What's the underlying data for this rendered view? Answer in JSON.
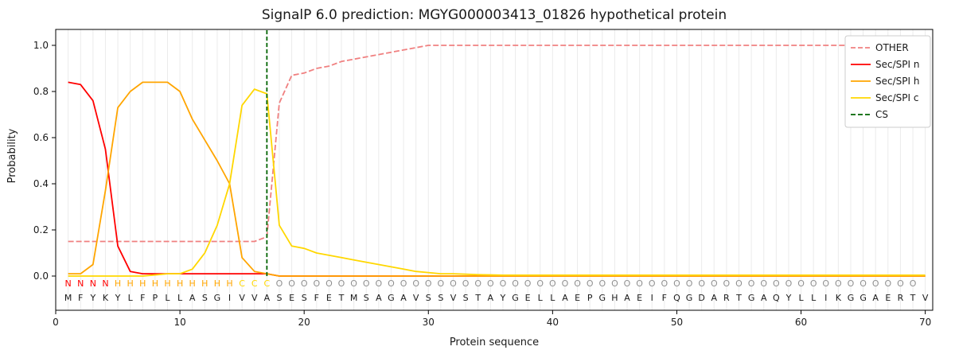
{
  "chart_data": {
    "type": "line",
    "title": "SignalP 6.0 prediction: MGYG000003413_01826 hypothetical protein",
    "xlabel": "Protein sequence",
    "ylabel": "Probability",
    "xlim": [
      0,
      70.6
    ],
    "ylim": [
      0,
      1.05
    ],
    "x_ticks": [
      0,
      10,
      20,
      30,
      40,
      50,
      60,
      70
    ],
    "y_ticks": [
      0.0,
      0.2,
      0.4,
      0.6,
      0.8,
      1.0
    ],
    "grid": "vertical gridline at every residue position",
    "legend_position": "upper right",
    "x_start": 1,
    "x_step": 1,
    "series": [
      {
        "name": "OTHER",
        "color": "#f08080",
        "dashed": true,
        "values": [
          0.15,
          0.15,
          0.15,
          0.15,
          0.15,
          0.15,
          0.15,
          0.15,
          0.15,
          0.15,
          0.15,
          0.15,
          0.15,
          0.15,
          0.15,
          0.15,
          0.17,
          0.75,
          0.87,
          0.88,
          0.9,
          0.91,
          0.93,
          0.94,
          0.95,
          0.96,
          0.97,
          0.98,
          0.99,
          1.0,
          1.0,
          1.0,
          1.0,
          1.0,
          1.0,
          1.0,
          1.0,
          1.0,
          1.0,
          1.0,
          1.0,
          1.0,
          1.0,
          1.0,
          1.0,
          1.0,
          1.0,
          1.0,
          1.0,
          1.0,
          1.0,
          1.0,
          1.0,
          1.0,
          1.0,
          1.0,
          1.0,
          1.0,
          1.0,
          1.0,
          1.0,
          1.0,
          1.0,
          1.0,
          1.0,
          1.0,
          1.0,
          1.0,
          1.0,
          1.0
        ]
      },
      {
        "name": "Sec/SPI n",
        "color": "#ff0000",
        "dashed": false,
        "values": [
          0.84,
          0.83,
          0.76,
          0.55,
          0.13,
          0.02,
          0.01,
          0.01,
          0.01,
          0.01,
          0.01,
          0.01,
          0.01,
          0.01,
          0.01,
          0.01,
          0.01,
          0.0,
          0.0,
          0.0,
          0.0,
          0.0,
          0.0,
          0.0,
          0.0,
          0.0,
          0.0,
          0.0,
          0.0,
          0.0,
          0.0,
          0.0,
          0.0,
          0.0,
          0.0,
          0.0,
          0.0,
          0.0,
          0.0,
          0.0,
          0.0,
          0.0,
          0.0,
          0.0,
          0.0,
          0.0,
          0.0,
          0.0,
          0.0,
          0.0,
          0.0,
          0.0,
          0.0,
          0.0,
          0.0,
          0.0,
          0.0,
          0.0,
          0.0,
          0.0,
          0.0,
          0.0,
          0.0,
          0.0,
          0.0,
          0.0,
          0.0,
          0.0,
          0.0,
          0.0
        ]
      },
      {
        "name": "Sec/SPI h",
        "color": "#ffa500",
        "dashed": false,
        "values": [
          0.01,
          0.01,
          0.05,
          0.37,
          0.73,
          0.8,
          0.84,
          0.84,
          0.84,
          0.8,
          0.68,
          0.59,
          0.5,
          0.4,
          0.08,
          0.02,
          0.01,
          0.0,
          0.0,
          0.0,
          0.0,
          0.0,
          0.0,
          0.0,
          0.0,
          0.0,
          0.0,
          0.0,
          0.0,
          0.0,
          0.0,
          0.0,
          0.0,
          0.0,
          0.0,
          0.0,
          0.0,
          0.0,
          0.0,
          0.0,
          0.0,
          0.0,
          0.0,
          0.0,
          0.0,
          0.0,
          0.0,
          0.0,
          0.0,
          0.0,
          0.0,
          0.0,
          0.0,
          0.0,
          0.0,
          0.0,
          0.0,
          0.0,
          0.0,
          0.0,
          0.0,
          0.0,
          0.0,
          0.0,
          0.0,
          0.0,
          0.0,
          0.0,
          0.0,
          0.0
        ]
      },
      {
        "name": "Sec/SPI c",
        "color": "#ffd700",
        "dashed": false,
        "values": [
          0.0,
          0.0,
          0.0,
          0.0,
          0.0,
          0.0,
          0.0,
          0.005,
          0.01,
          0.01,
          0.03,
          0.1,
          0.22,
          0.4,
          0.74,
          0.81,
          0.79,
          0.22,
          0.13,
          0.12,
          0.1,
          0.09,
          0.08,
          0.07,
          0.06,
          0.05,
          0.04,
          0.03,
          0.02,
          0.015,
          0.01,
          0.01,
          0.008,
          0.006,
          0.005,
          0.004,
          0.004,
          0.004,
          0.004,
          0.004,
          0.004,
          0.004,
          0.004,
          0.004,
          0.004,
          0.004,
          0.004,
          0.004,
          0.004,
          0.004,
          0.004,
          0.004,
          0.004,
          0.004,
          0.004,
          0.004,
          0.004,
          0.004,
          0.004,
          0.004,
          0.004,
          0.004,
          0.004,
          0.004,
          0.004,
          0.004,
          0.004,
          0.004,
          0.004,
          0.004
        ]
      }
    ],
    "cs": {
      "name": "CS",
      "position": 17,
      "color": "#006400",
      "dashed": true
    },
    "sequence": "MFYKYLFPLLASGIVVASESFETMSAGAVSSVSTAYGELLAEPGHAEIFQGDARTGAQYLLIKGGAERTV",
    "regions": "NNNNHHHHHHHHHHCCCOOOOOOOOOOOOOOOOOOOOOOOOOOOOOOOOOOOOOOOOOOOOOOOOOOOO",
    "region_colors": {
      "N": "#ff0000",
      "H": "#ffa500",
      "C": "#ffd700",
      "O": "#909090"
    },
    "legend_labels": [
      "OTHER",
      "Sec/SPI n",
      "Sec/SPI h",
      "Sec/SPI c",
      "CS"
    ]
  }
}
